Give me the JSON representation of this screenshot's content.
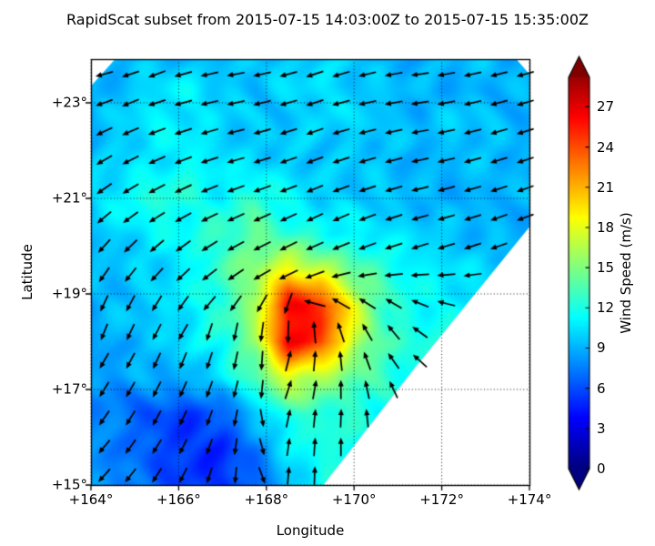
{
  "chart_data": {
    "type": "heatmap",
    "subtype": "wind-field-with-quiver-arrows",
    "title": "RapidScat subset from 2015-07-15 14:03:00Z to 2015-07-15 15:35:00Z",
    "xlabel": "Longitude",
    "ylabel": "Latitude",
    "colorbar_label": "Wind Speed (m/s)",
    "xlim": [
      164,
      174
    ],
    "ylim": [
      15,
      23.914
    ],
    "grid": true,
    "x_ticks": {
      "values": [
        164,
        166,
        168,
        170,
        172,
        174
      ],
      "labels": [
        "+164°",
        "+166°",
        "+168°",
        "+170°",
        "+172°",
        "+174°"
      ]
    },
    "y_ticks": {
      "values": [
        15,
        17,
        19,
        21,
        23
      ],
      "labels": [
        "+15°",
        "+17°",
        "+19°",
        "+21°",
        "+23°"
      ]
    },
    "colorbar": {
      "ticks": [
        0,
        3,
        6,
        9,
        12,
        15,
        18,
        21,
        24,
        27
      ],
      "tick_labels": [
        "0",
        "3",
        "6",
        "9",
        "12",
        "15",
        "18",
        "21",
        "24",
        "27"
      ],
      "vmin": 0,
      "vmax_bar": 29.2,
      "cmap": "jet",
      "extend": "both",
      "units": "m/s"
    },
    "speed_field": {
      "units": "m/s",
      "lon0": 164,
      "dlon": 0.75,
      "lat0": 24,
      "dlat": -0.75,
      "values": [
        [
          9,
          9,
          9.5,
          9,
          9,
          9.5,
          10,
          10,
          9.5,
          9,
          9,
          9,
          9.5,
          9
        ],
        [
          9,
          9.5,
          10.5,
          11,
          10,
          9.5,
          10,
          10.5,
          10,
          9.5,
          9,
          9,
          9,
          9
        ],
        [
          9,
          10,
          11,
          10.5,
          10,
          9.5,
          9.5,
          10,
          10,
          9.5,
          9,
          10,
          9.5,
          9
        ],
        [
          9.5,
          10,
          10.5,
          11.5,
          10.5,
          10,
          10,
          9.5,
          9.5,
          9.5,
          9,
          9,
          9.5,
          9
        ],
        [
          10,
          11.5,
          12.5,
          12,
          11,
          13,
          11,
          10,
          10,
          9.5,
          9,
          9,
          9,
          9
        ],
        [
          9.5,
          10,
          11,
          11.5,
          13,
          14,
          12.5,
          11.5,
          11,
          10.5,
          10,
          9.5,
          9,
          9
        ],
        [
          9,
          9.5,
          10,
          11,
          13,
          15.5,
          19,
          17,
          14,
          12.5,
          11,
          10.5,
          10,
          10
        ],
        [
          9,
          9.5,
          10,
          11,
          12.5,
          16,
          26.5,
          25.5,
          18,
          12.5,
          11.5,
          11,
          10.5,
          10
        ],
        [
          8.5,
          9,
          9.5,
          10.5,
          12,
          15.5,
          26.5,
          24.5,
          17,
          13,
          12,
          11.5,
          11,
          10
        ],
        [
          8,
          8.5,
          9,
          9,
          10.5,
          13.5,
          18,
          16,
          14,
          12.5,
          11.5,
          11,
          10.5,
          10
        ],
        [
          8,
          7,
          6,
          5.5,
          6.5,
          9.5,
          12.5,
          12.5,
          12,
          11.5,
          11,
          10.5,
          10,
          10
        ],
        [
          8,
          7.5,
          6,
          5,
          5,
          7.5,
          10.5,
          12,
          12,
          11.5,
          11,
          10.5,
          10,
          10
        ],
        [
          8,
          7.5,
          6.5,
          5.5,
          5,
          6.5,
          9.5,
          11.5,
          12,
          11.5,
          11,
          10.5,
          10,
          10
        ]
      ]
    },
    "wind_arrows": {
      "angle_convention": "degrees, 0=east, 90=north, counterclockwise",
      "lon0": 164.3,
      "dlon": 0.6,
      "lat0": 23.6,
      "dlat": -0.6,
      "angles_deg": [
        [
          195,
          198,
          200,
          195,
          192,
          190,
          192,
          195,
          198,
          196,
          193,
          190,
          188,
          190,
          192,
          194,
          195
        ],
        [
          200,
          202,
          198,
          195,
          193,
          192,
          194,
          196,
          198,
          195,
          192,
          190,
          189,
          191,
          193,
          195,
          196
        ],
        [
          205,
          203,
          200,
          198,
          196,
          194,
          195,
          197,
          199,
          196,
          194,
          192,
          190,
          192,
          194,
          196,
          197
        ],
        [
          210,
          207,
          204,
          201,
          198,
          196,
          197,
          199,
          200,
          198,
          196,
          194,
          192,
          193,
          195,
          197,
          198
        ],
        [
          215,
          211,
          208,
          205,
          202,
          200,
          200,
          201,
          202,
          200,
          198,
          196,
          194,
          195,
          196,
          198,
          199
        ],
        [
          220,
          216,
          212,
          209,
          206,
          204,
          204,
          205,
          205,
          203,
          200,
          198,
          196,
          196,
          197,
          199,
          200
        ],
        [
          228,
          224,
          220,
          216,
          212,
          209,
          207,
          206,
          204,
          202,
          200,
          198,
          197,
          197,
          198,
          199,
          200
        ],
        [
          235,
          231,
          227,
          223,
          218,
          214,
          210,
          206,
          200,
          194,
          189,
          186,
          184,
          185,
          187,
          190,
          192
        ],
        [
          245,
          242,
          238,
          234,
          230,
          234,
          240,
          250,
          165,
          150,
          148,
          150,
          158,
          166,
          172,
          177,
          180
        ],
        [
          248,
          245,
          242,
          240,
          252,
          258,
          262,
          268,
          95,
          108,
          120,
          130,
          144,
          157,
          167,
          174,
          178
        ],
        [
          240,
          242,
          245,
          248,
          252,
          258,
          266,
          76,
          85,
          96,
          110,
          125,
          138,
          150,
          160,
          168,
          172
        ],
        [
          238,
          240,
          243,
          246,
          250,
          256,
          264,
          72,
          80,
          90,
          102,
          115,
          128,
          140,
          152,
          160,
          165
        ],
        [
          235,
          238,
          241,
          245,
          250,
          258,
          280,
          78,
          84,
          88,
          96,
          108,
          120,
          132,
          144,
          154,
          160
        ],
        [
          230,
          234,
          238,
          243,
          250,
          262,
          285,
          82,
          86,
          90,
          95,
          105,
          115,
          125,
          135,
          145,
          152
        ],
        [
          228,
          232,
          237,
          243,
          252,
          265,
          290,
          85,
          88,
          92,
          95,
          100,
          108,
          118,
          128,
          138,
          145
        ]
      ]
    },
    "no_data_polygons_lonlat": [
      [
        [
          169.3,
          15
        ],
        [
          171.3,
          17.35
        ],
        [
          174,
          20.4
        ],
        [
          174,
          15
        ]
      ],
      [
        [
          164,
          23.914
        ],
        [
          164.55,
          23.914
        ],
        [
          164,
          23.35
        ]
      ],
      [
        [
          173.7,
          23.914
        ],
        [
          174,
          23.914
        ],
        [
          174,
          23.6
        ]
      ]
    ],
    "colors": {
      "arrow": "#000000",
      "frame": "#000000",
      "gridline": "#000000",
      "nodata": "#ffffff",
      "background": "#ffffff"
    }
  }
}
